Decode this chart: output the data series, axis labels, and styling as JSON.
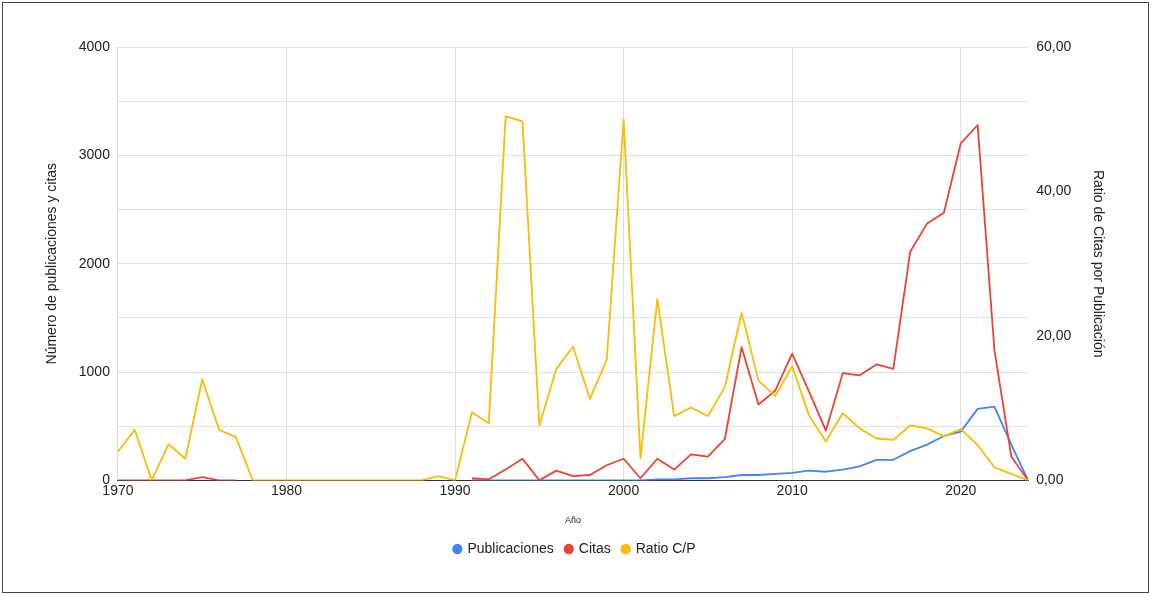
{
  "chart_data": {
    "type": "line",
    "xlabel": "Año",
    "ylabel": "Número de publicaciones y citas",
    "y2label": "Ratio de Citas por Publicación",
    "x": [
      1970,
      1971,
      1972,
      1973,
      1974,
      1975,
      1976,
      1977,
      1978,
      1979,
      1980,
      1981,
      1982,
      1983,
      1984,
      1985,
      1986,
      1987,
      1988,
      1989,
      1990,
      1991,
      1992,
      1993,
      1994,
      1995,
      1996,
      1997,
      1998,
      1999,
      2000,
      2001,
      2002,
      2003,
      2004,
      2005,
      2006,
      2007,
      2008,
      2009,
      2010,
      2011,
      2012,
      2013,
      2014,
      2015,
      2016,
      2017,
      2018,
      2019,
      2020,
      2021,
      2022,
      2023,
      2024
    ],
    "series": [
      {
        "name": "Publicaciones",
        "color": "#4285f4",
        "values": [
          null,
          null,
          null,
          null,
          null,
          null,
          null,
          null,
          null,
          null,
          null,
          null,
          null,
          null,
          null,
          null,
          null,
          null,
          null,
          null,
          null,
          0,
          0,
          0,
          0,
          0,
          0,
          0,
          0,
          0,
          0,
          0,
          10,
          10,
          20,
          20,
          30,
          50,
          50,
          60,
          70,
          90,
          80,
          100,
          130,
          190,
          190,
          270,
          330,
          410,
          450,
          660,
          680,
          330,
          0
        ]
      },
      {
        "name": "Citas",
        "color": "#ea4335",
        "values": [
          0,
          0,
          0,
          0,
          0,
          30,
          0,
          0,
          null,
          null,
          null,
          null,
          null,
          null,
          null,
          null,
          null,
          null,
          null,
          null,
          null,
          20,
          10,
          100,
          200,
          0,
          90,
          40,
          50,
          140,
          200,
          20,
          200,
          100,
          240,
          220,
          380,
          1230,
          700,
          830,
          1170,
          820,
          460,
          990,
          970,
          1070,
          1030,
          2110,
          2370,
          2470,
          3110,
          3280,
          1200,
          220,
          0
        ]
      },
      {
        "name": "Ratio C/P",
        "color": "#fbbc04",
        "axis": "y2",
        "values": [
          4.0,
          7.0,
          0,
          5.0,
          3.0,
          14.0,
          7.0,
          6.0,
          0,
          0,
          0,
          0,
          0,
          0,
          0,
          0,
          0,
          0,
          0,
          0.6,
          0,
          9.4,
          7.9,
          50.4,
          49.7,
          7.6,
          15.4,
          18.5,
          11.3,
          16.7,
          50.0,
          3.1,
          25.1,
          8.9,
          10.1,
          8.9,
          12.9,
          23.2,
          13.8,
          11.7,
          15.8,
          9.0,
          5.4,
          9.3,
          7.2,
          5.8,
          5.6,
          7.6,
          7.2,
          6.1,
          7.1,
          4.9,
          1.8,
          0.9,
          0
        ]
      }
    ],
    "xlim": [
      1970,
      2024
    ],
    "xticks": [
      1970,
      1980,
      1990,
      2000,
      2010,
      2020
    ],
    "ylim": [
      0,
      4000
    ],
    "yticks": [
      0,
      {
        "value": 500,
        "label": null
      },
      1000,
      {
        "value": 1500,
        "label": null
      },
      2000,
      {
        "value": 2500,
        "label": null
      },
      3000,
      {
        "value": 3500,
        "label": null
      },
      4000
    ],
    "y2lim": [
      0,
      60
    ],
    "y2ticks": [
      {
        "value": 0,
        "label": "0,00"
      },
      {
        "value": 20,
        "label": "20,00"
      },
      {
        "value": 40,
        "label": "40,00"
      },
      {
        "value": 60,
        "label": "60,00"
      }
    ],
    "grid": true,
    "legend": "bottom",
    "marker": "none",
    "line_style": "solid"
  }
}
